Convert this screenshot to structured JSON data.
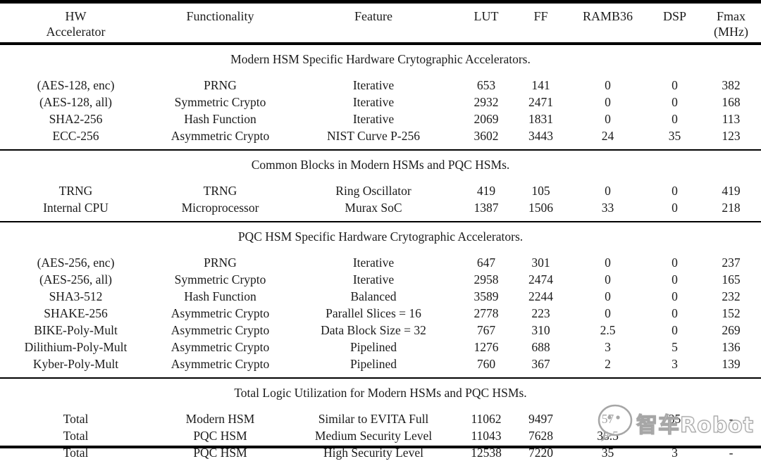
{
  "table": {
    "columns": [
      {
        "label": "HW",
        "sub": "Accelerator",
        "key": "hw-accelerator"
      },
      {
        "label": "Functionality",
        "sub": "",
        "key": "functionality"
      },
      {
        "label": "Feature",
        "sub": "",
        "key": "feature"
      },
      {
        "label": "LUT",
        "sub": "",
        "key": "lut"
      },
      {
        "label": "FF",
        "sub": "",
        "key": "ff"
      },
      {
        "label": "RAMB36",
        "sub": "",
        "key": "ramb36"
      },
      {
        "label": "DSP",
        "sub": "",
        "key": "dsp"
      },
      {
        "label": "Fmax",
        "sub": "(MHz)",
        "key": "fmax-mhz"
      }
    ],
    "sections": [
      {
        "title": "Modern HSM Specific Hardware Crytographic Accelerators.",
        "rows": [
          [
            "(AES-128, enc)",
            "PRNG",
            "Iterative",
            "653",
            "141",
            "0",
            "0",
            "382"
          ],
          [
            "(AES-128, all)",
            "Symmetric Crypto",
            "Iterative",
            "2932",
            "2471",
            "0",
            "0",
            "168"
          ],
          [
            "SHA2-256",
            "Hash Function",
            "Iterative",
            "2069",
            "1831",
            "0",
            "0",
            "113"
          ],
          [
            "ECC-256",
            "Asymmetric Crypto",
            "NIST Curve P-256",
            "3602",
            "3443",
            "24",
            "35",
            "123"
          ]
        ]
      },
      {
        "title": "Common Blocks in Modern HSMs and PQC HSMs.",
        "rows": [
          [
            "TRNG",
            "TRNG",
            "Ring Oscillator",
            "419",
            "105",
            "0",
            "0",
            "419"
          ],
          [
            "Internal CPU",
            "Microprocessor",
            "Murax SoC",
            "1387",
            "1506",
            "33",
            "0",
            "218"
          ]
        ]
      },
      {
        "title": "PQC HSM Specific Hardware Crytographic Accelerators.",
        "rows": [
          [
            "(AES-256, enc)",
            "PRNG",
            "Iterative",
            "647",
            "301",
            "0",
            "0",
            "237"
          ],
          [
            "(AES-256, all)",
            "Symmetric Crypto",
            "Iterative",
            "2958",
            "2474",
            "0",
            "0",
            "165"
          ],
          [
            "SHA3-512",
            "Hash Function",
            "Balanced",
            "3589",
            "2244",
            "0",
            "0",
            "232"
          ],
          [
            "SHAKE-256",
            "Asymmetric Crypto",
            "Parallel Slices = 16",
            "2778",
            "223",
            "0",
            "0",
            "152"
          ],
          [
            "BIKE-Poly-Mult",
            "Asymmetric Crypto",
            "Data Block Size = 32",
            "767",
            "310",
            "2.5",
            "0",
            "269"
          ],
          [
            "Dilithium-Poly-Mult",
            "Asymmetric Crypto",
            "Pipelined",
            "1276",
            "688",
            "3",
            "5",
            "136"
          ],
          [
            "Kyber-Poly-Mult",
            "Asymmetric Crypto",
            "Pipelined",
            "760",
            "367",
            "2",
            "3",
            "139"
          ]
        ]
      },
      {
        "title": "Total Logic Utilization for Modern HSMs and PQC HSMs.",
        "rows": [
          [
            "Total",
            "Modern HSM",
            "Similar to EVITA Full",
            "11062",
            "9497",
            "57",
            "35",
            "-"
          ],
          [
            "Total",
            "PQC HSM",
            "Medium Security Level",
            "11043",
            "7628",
            "38.5",
            "",
            ""
          ],
          [
            "Total",
            "PQC HSM",
            "High Security Level",
            "12538",
            "7220",
            "35",
            "3",
            "-"
          ]
        ]
      }
    ]
  },
  "watermark": {
    "text": "智车Robot",
    "icon": "wechat-chat-bubble-icon",
    "color": "#a6a6a6"
  }
}
